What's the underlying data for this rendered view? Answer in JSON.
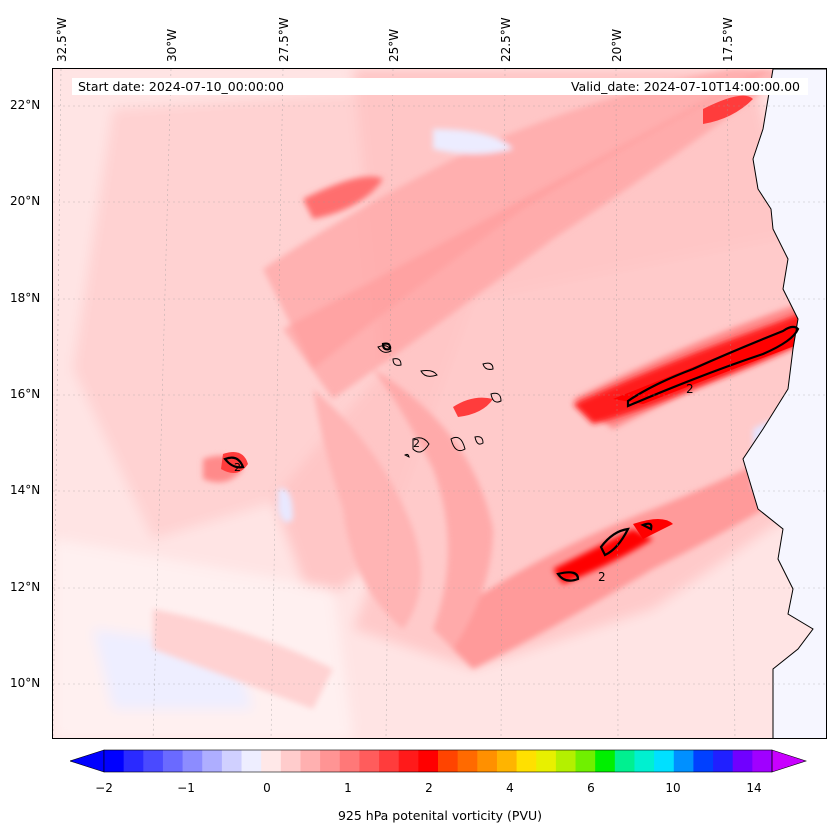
{
  "map": {
    "start_date_text": "Start date: 2024-07-10_00:00:00",
    "valid_date_text": "Valid_date: 2024-07-10T14:00:00.00",
    "lon_labels": [
      "32.5°W",
      "30°W",
      "27.5°W",
      "25°W",
      "22.5°W",
      "20°W",
      "17.5°W"
    ],
    "lat_labels": [
      "22°N",
      "20°N",
      "18°N",
      "16°N",
      "14°N",
      "12°N",
      "10°N"
    ],
    "contour_label": "2",
    "extent": {
      "lon_min": -33,
      "lon_max": -15,
      "lat_min": 9,
      "lat_max": 22.8
    },
    "colors": {
      "background": "#ffe2e2",
      "land": "#ffffff",
      "coast": "#000000"
    }
  },
  "colorbar": {
    "label": "925 hPa potenital vorticity (PVU)",
    "tick_labels": [
      "−2",
      "−1",
      "0",
      "1",
      "2",
      "4",
      "6",
      "10",
      "14"
    ],
    "colors": [
      "#0000ff",
      "#2a2aff",
      "#4a4aff",
      "#6a6aff",
      "#8c8cff",
      "#aeaeff",
      "#d0d0ff",
      "#eeeeff",
      "#ffe8e8",
      "#ffcccc",
      "#ffb0b0",
      "#ff9494",
      "#ff7878",
      "#ff5c5c",
      "#ff3c3c",
      "#ff1a1a",
      "#ff0000",
      "#ff4400",
      "#ff6a00",
      "#ff9000",
      "#ffb400",
      "#ffe000",
      "#e8f000",
      "#b4f000",
      "#70f000",
      "#00f000",
      "#00f090",
      "#00f0d0",
      "#00e0ff",
      "#0090ff",
      "#0040ff",
      "#2020ff",
      "#7000ff",
      "#a000ff"
    ],
    "under_color": "#0000ff",
    "over_color": "#c800ff"
  }
}
